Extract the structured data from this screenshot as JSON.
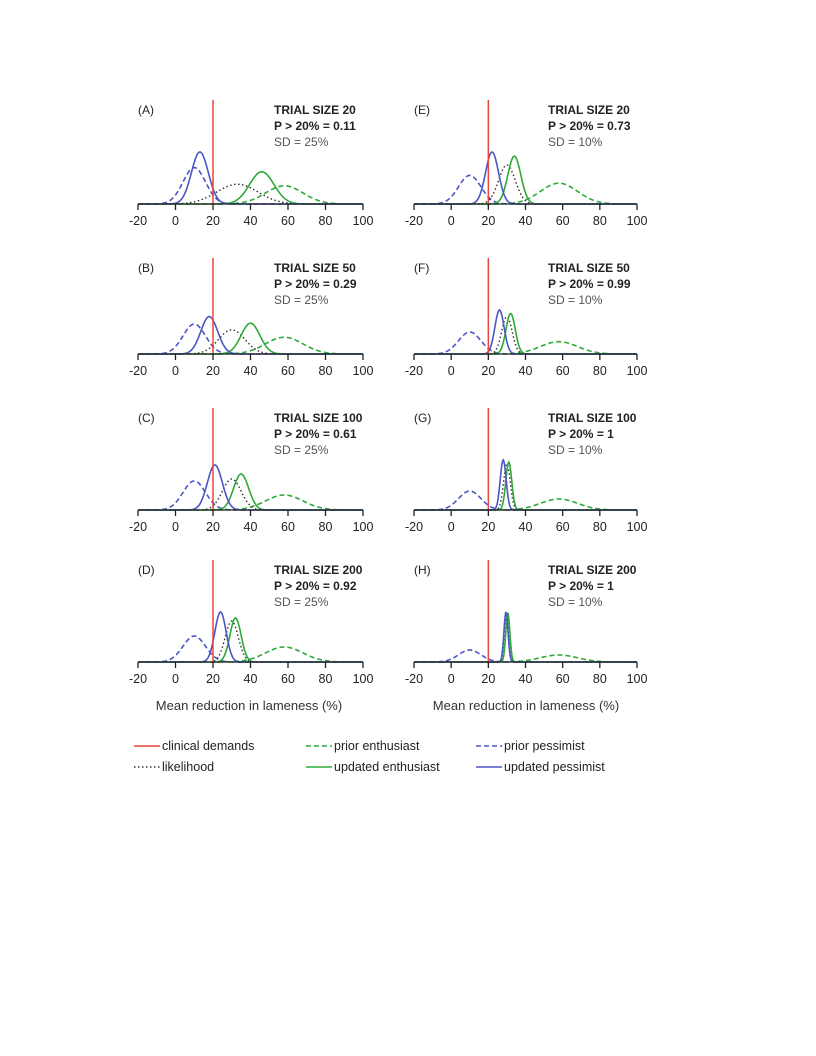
{
  "x_axis_label": "Mean reduction in lameness (%)",
  "legend": [
    {
      "key": "clinical",
      "label": "clinical demands",
      "color": "#e8453c",
      "dash": "solid"
    },
    {
      "key": "prior_enthusiast",
      "label": "prior enthusiast",
      "color": "#2eaa3a",
      "dash": "dashed"
    },
    {
      "key": "prior_pessimist",
      "label": "prior pessimist",
      "color": "#4a57c4",
      "dash": "dashed"
    },
    {
      "key": "likelihood",
      "label": "likelihood",
      "color": "#333333",
      "dash": "dotted"
    },
    {
      "key": "updated_enthusiast",
      "label": "updated enthusiast",
      "color": "#2eaa3a",
      "dash": "solid"
    },
    {
      "key": "updated_pessimist",
      "label": "updated pessimist",
      "color": "#4a57c4",
      "dash": "solid"
    }
  ],
  "chart_data": [
    {
      "panel": "(A)",
      "type": "line",
      "title": "TRIAL SIZE 20",
      "prob": "P > 20% = 0.11",
      "sd": "SD = 25%",
      "xlim": [
        -20,
        100
      ],
      "xticks": [
        "-20",
        "0",
        "20",
        "40",
        "60",
        "80",
        "100"
      ],
      "clinical_x": 20,
      "curves": {
        "prior_pessimist": {
          "mean": 10,
          "sd": 6,
          "peak": 0.7
        },
        "prior_enthusiast": {
          "mean": 58,
          "sd": 10,
          "peak": 0.35
        },
        "likelihood": {
          "mean": 33,
          "sd": 11,
          "peak": 0.38
        },
        "updated_pessimist": {
          "mean": 13,
          "sd": 4.5,
          "peak": 1.0
        },
        "updated_enthusiast": {
          "mean": 46,
          "sd": 6.5,
          "peak": 0.62
        }
      }
    },
    {
      "panel": "(E)",
      "type": "line",
      "title": "TRIAL SIZE 20",
      "prob": "P > 20% = 0.73",
      "sd": "SD = 10%",
      "xlim": [
        -20,
        100
      ],
      "xticks": [
        "-20",
        "0",
        "20",
        "40",
        "60",
        "80",
        "100"
      ],
      "clinical_x": 20,
      "curves": {
        "prior_pessimist": {
          "mean": 10,
          "sd": 6,
          "peak": 0.55
        },
        "prior_enthusiast": {
          "mean": 58,
          "sd": 10,
          "peak": 0.4
        },
        "likelihood": {
          "mean": 30,
          "sd": 4.5,
          "peak": 0.75
        },
        "updated_pessimist": {
          "mean": 22,
          "sd": 3.5,
          "peak": 1.0
        },
        "updated_enthusiast": {
          "mean": 34,
          "sd": 3.5,
          "peak": 0.92
        }
      }
    },
    {
      "panel": "(B)",
      "type": "line",
      "title": "TRIAL SIZE 50",
      "prob": "P > 20% = 0.29",
      "sd": "SD = 25%",
      "xlim": [
        -20,
        100
      ],
      "xticks": [
        "-20",
        "0",
        "20",
        "40",
        "60",
        "80",
        "100"
      ],
      "clinical_x": 20,
      "curves": {
        "prior_pessimist": {
          "mean": 10,
          "sd": 6,
          "peak": 0.68
        },
        "prior_enthusiast": {
          "mean": 58,
          "sd": 10,
          "peak": 0.38
        },
        "likelihood": {
          "mean": 30,
          "sd": 7,
          "peak": 0.55
        },
        "updated_pessimist": {
          "mean": 18,
          "sd": 4.5,
          "peak": 0.85
        },
        "updated_enthusiast": {
          "mean": 40,
          "sd": 5,
          "peak": 0.7
        }
      }
    },
    {
      "panel": "(F)",
      "type": "line",
      "title": "TRIAL SIZE 50",
      "prob": "P > 20% = 0.99",
      "sd": "SD = 10%",
      "xlim": [
        -20,
        100
      ],
      "xticks": [
        "-20",
        "0",
        "20",
        "40",
        "60",
        "80",
        "100"
      ],
      "clinical_x": 20,
      "curves": {
        "prior_pessimist": {
          "mean": 10,
          "sd": 6,
          "peak": 0.5
        },
        "prior_enthusiast": {
          "mean": 58,
          "sd": 10,
          "peak": 0.28
        },
        "likelihood": {
          "mean": 30,
          "sd": 2.8,
          "peak": 0.85
        },
        "updated_pessimist": {
          "mean": 26,
          "sd": 2.5,
          "peak": 1.0
        },
        "updated_enthusiast": {
          "mean": 32,
          "sd": 2.5,
          "peak": 0.92
        }
      }
    },
    {
      "panel": "(C)",
      "type": "line",
      "title": "TRIAL SIZE 100",
      "prob": "P > 20% = 0.61",
      "sd": "SD = 25%",
      "xlim": [
        -20,
        100
      ],
      "xticks": [
        "-20",
        "0",
        "20",
        "40",
        "60",
        "80",
        "100"
      ],
      "clinical_x": 20,
      "curves": {
        "prior_pessimist": {
          "mean": 10,
          "sd": 6,
          "peak": 0.58
        },
        "prior_enthusiast": {
          "mean": 58,
          "sd": 10,
          "peak": 0.3
        },
        "likelihood": {
          "mean": 30,
          "sd": 5,
          "peak": 0.62
        },
        "updated_pessimist": {
          "mean": 21,
          "sd": 4,
          "peak": 0.9
        },
        "updated_enthusiast": {
          "mean": 35,
          "sd": 4,
          "peak": 0.72
        }
      }
    },
    {
      "panel": "(G)",
      "type": "line",
      "title": "TRIAL SIZE 100",
      "prob": "P > 20% = 1",
      "sd": "SD = 10%",
      "xlim": [
        -20,
        100
      ],
      "xticks": [
        "-20",
        "0",
        "20",
        "40",
        "60",
        "80",
        "100"
      ],
      "clinical_x": 20,
      "curves": {
        "prior_pessimist": {
          "mean": 10,
          "sd": 6,
          "peak": 0.38
        },
        "prior_enthusiast": {
          "mean": 58,
          "sd": 10,
          "peak": 0.22
        },
        "likelihood": {
          "mean": 30,
          "sd": 1.8,
          "peak": 0.92
        },
        "updated_pessimist": {
          "mean": 28,
          "sd": 1.6,
          "peak": 1.0
        },
        "updated_enthusiast": {
          "mean": 31,
          "sd": 1.6,
          "peak": 0.96
        }
      }
    },
    {
      "panel": "(D)",
      "type": "line",
      "title": "TRIAL SIZE 200",
      "prob": "P > 20% = 0.92",
      "sd": "SD = 25%",
      "xlim": [
        -20,
        100
      ],
      "xticks": [
        "-20",
        "0",
        "20",
        "40",
        "60",
        "80",
        "100"
      ],
      "clinical_x": 20,
      "curves": {
        "prior_pessimist": {
          "mean": 10,
          "sd": 6,
          "peak": 0.52
        },
        "prior_enthusiast": {
          "mean": 58,
          "sd": 10,
          "peak": 0.3
        },
        "likelihood": {
          "mean": 30,
          "sd": 3.5,
          "peak": 0.82
        },
        "updated_pessimist": {
          "mean": 24,
          "sd": 3,
          "peak": 1.0
        },
        "updated_enthusiast": {
          "mean": 32,
          "sd": 3,
          "peak": 0.88
        }
      }
    },
    {
      "panel": "(H)",
      "type": "line",
      "title": "TRIAL SIZE 200",
      "prob": "P > 20% = 1",
      "sd": "SD = 10%",
      "xlim": [
        -20,
        100
      ],
      "xticks": [
        "-20",
        "0",
        "20",
        "40",
        "60",
        "80",
        "100"
      ],
      "clinical_x": 20,
      "curves": {
        "prior_pessimist": {
          "mean": 10,
          "sd": 6,
          "peak": 0.24
        },
        "prior_enthusiast": {
          "mean": 58,
          "sd": 10,
          "peak": 0.14
        },
        "likelihood": {
          "mean": 30,
          "sd": 1.2,
          "peak": 0.96
        },
        "updated_pessimist": {
          "mean": 29.5,
          "sd": 1.1,
          "peak": 1.0
        },
        "updated_enthusiast": {
          "mean": 30.5,
          "sd": 1.1,
          "peak": 0.98
        }
      }
    }
  ]
}
